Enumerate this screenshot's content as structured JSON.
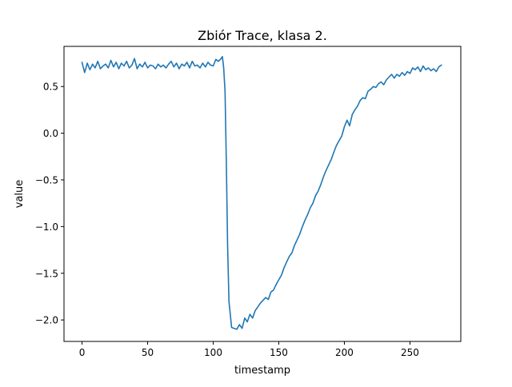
{
  "chart_data": {
    "type": "line",
    "title": "Zbiór Trace, klasa 2.",
    "xlabel": "timestamp",
    "ylabel": "value",
    "xlim": [
      -13.75,
      288.75
    ],
    "ylim": [
      -2.23,
      0.93
    ],
    "xticks": [
      0,
      50,
      100,
      150,
      200,
      250
    ],
    "yticks": [
      -2.0,
      -1.5,
      -1.0,
      -0.5,
      0.0,
      0.5
    ],
    "ytick_labels": [
      "−2.0",
      "−1.5",
      "−1.0",
      "−0.5",
      "0.0",
      "0.5"
    ],
    "grid": false,
    "series": [
      {
        "color": "#1f77b4",
        "x": [
          0,
          2,
          4,
          6,
          8,
          10,
          12,
          14,
          16,
          18,
          20,
          22,
          24,
          26,
          28,
          30,
          32,
          34,
          36,
          38,
          40,
          42,
          44,
          46,
          48,
          50,
          52,
          54,
          56,
          58,
          60,
          62,
          64,
          66,
          68,
          70,
          72,
          74,
          76,
          78,
          80,
          82,
          84,
          86,
          88,
          90,
          92,
          94,
          96,
          98,
          100,
          102,
          104,
          106,
          107,
          108,
          109,
          110,
          111,
          112,
          114,
          116,
          118,
          120,
          122,
          124,
          126,
          128,
          130,
          132,
          134,
          136,
          138,
          140,
          142,
          144,
          146,
          148,
          150,
          152,
          154,
          156,
          158,
          160,
          162,
          164,
          166,
          168,
          170,
          172,
          174,
          176,
          178,
          180,
          182,
          184,
          186,
          188,
          190,
          192,
          194,
          196,
          198,
          200,
          202,
          204,
          206,
          208,
          210,
          212,
          214,
          216,
          218,
          220,
          222,
          224,
          226,
          228,
          230,
          232,
          234,
          236,
          238,
          240,
          242,
          244,
          246,
          248,
          250,
          252,
          254,
          256,
          258,
          260,
          262,
          264,
          266,
          268,
          270,
          272,
          274
        ],
        "values": [
          0.76,
          0.65,
          0.75,
          0.68,
          0.74,
          0.7,
          0.77,
          0.69,
          0.72,
          0.74,
          0.7,
          0.78,
          0.71,
          0.76,
          0.69,
          0.75,
          0.72,
          0.77,
          0.7,
          0.73,
          0.8,
          0.69,
          0.74,
          0.71,
          0.76,
          0.7,
          0.73,
          0.72,
          0.69,
          0.74,
          0.71,
          0.73,
          0.7,
          0.74,
          0.77,
          0.71,
          0.75,
          0.69,
          0.74,
          0.72,
          0.76,
          0.7,
          0.77,
          0.72,
          0.73,
          0.7,
          0.75,
          0.71,
          0.76,
          0.73,
          0.72,
          0.79,
          0.77,
          0.8,
          0.82,
          0.7,
          0.45,
          -0.3,
          -1.2,
          -1.8,
          -2.08,
          -2.09,
          -2.1,
          -2.05,
          -2.09,
          -1.98,
          -2.02,
          -1.94,
          -1.98,
          -1.9,
          -1.86,
          -1.82,
          -1.79,
          -1.76,
          -1.78,
          -1.7,
          -1.68,
          -1.62,
          -1.57,
          -1.52,
          -1.44,
          -1.38,
          -1.32,
          -1.28,
          -1.2,
          -1.14,
          -1.08,
          -1.0,
          -0.93,
          -0.87,
          -0.8,
          -0.75,
          -0.67,
          -0.62,
          -0.55,
          -0.47,
          -0.4,
          -0.34,
          -0.28,
          -0.2,
          -0.13,
          -0.08,
          -0.03,
          0.07,
          0.14,
          0.08,
          0.2,
          0.25,
          0.29,
          0.35,
          0.38,
          0.37,
          0.45,
          0.47,
          0.5,
          0.49,
          0.53,
          0.55,
          0.52,
          0.57,
          0.6,
          0.63,
          0.59,
          0.63,
          0.61,
          0.65,
          0.62,
          0.66,
          0.64,
          0.7,
          0.68,
          0.71,
          0.66,
          0.72,
          0.68,
          0.7,
          0.67,
          0.69,
          0.66,
          0.71,
          0.73
        ]
      }
    ]
  }
}
